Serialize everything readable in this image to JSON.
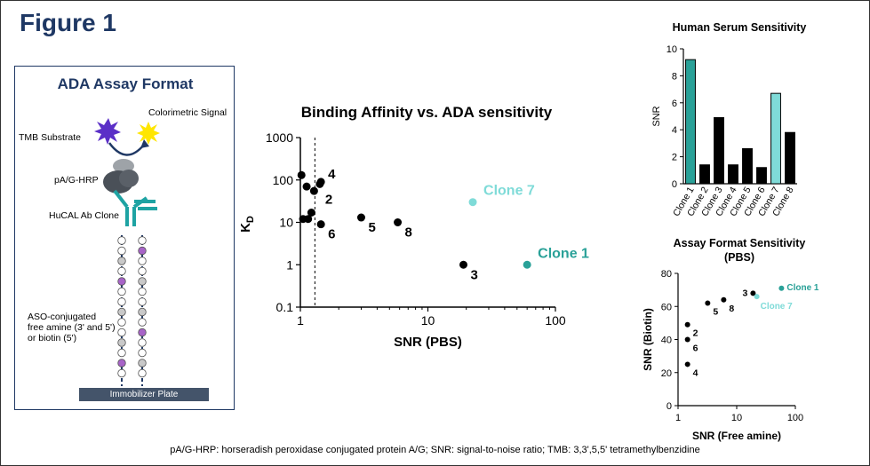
{
  "figure_title": "Figure 1",
  "assay": {
    "title": "ADA Assay Format",
    "colorimetric_signal": "Colorimetric Signal",
    "tmb_substrate": "TMB Substrate",
    "hrp": "pA/G-HRP",
    "clone": "HuCAL Ab Clone",
    "aso_line1": "ASO-conjugated",
    "aso_line2": "free amine (3' and 5')",
    "aso_line3": "or biotin (5')",
    "plate": "Immobilizer Plate"
  },
  "caption": "pA/G-HRP:  horseradish peroxidase  conjugated  protein A/G; SNR:  signal-to-noise  ratio; TMB:  3,3',5,5' tetramethylbenzidine",
  "colors": {
    "teal": "#2aa198",
    "light_teal": "#7fdbd8",
    "black": "#000000",
    "navy": "#1f3864"
  },
  "chart_data": [
    {
      "type": "scatter",
      "title": "Binding Affinity vs. ADA sensitivity",
      "xlabel": "SNR (PBS)",
      "ylabel": "K",
      "ylabel_sub": "D",
      "xscale": "log",
      "yscale": "log",
      "xlim": [
        1,
        100
      ],
      "ylim": [
        0.1,
        1000
      ],
      "xticks": [
        "1",
        "10",
        "100"
      ],
      "yticks": [
        "0.1",
        "1",
        "10",
        "100",
        "1000"
      ],
      "reference_line_x": 1.3,
      "points": [
        {
          "x": 1.02,
          "y": 130,
          "label": ""
        },
        {
          "x": 1.12,
          "y": 70,
          "label": ""
        },
        {
          "x": 1.28,
          "y": 55,
          "label": ""
        },
        {
          "x": 1.45,
          "y": 90,
          "label": "4"
        },
        {
          "x": 1.42,
          "y": 80,
          "label": "2"
        },
        {
          "x": 1.05,
          "y": 12,
          "label": ""
        },
        {
          "x": 1.15,
          "y": 12,
          "label": ""
        },
        {
          "x": 1.22,
          "y": 17,
          "label": ""
        },
        {
          "x": 1.45,
          "y": 9,
          "label": "6"
        },
        {
          "x": 3.0,
          "y": 13,
          "label": "5"
        },
        {
          "x": 5.8,
          "y": 10,
          "label": "8"
        },
        {
          "x": 19,
          "y": 1.0,
          "label": "3"
        },
        {
          "x": 22.5,
          "y": 30,
          "label": "Clone 7",
          "color": "light_teal"
        },
        {
          "x": 60,
          "y": 1.0,
          "label": "Clone 1",
          "color": "teal"
        }
      ]
    },
    {
      "type": "bar",
      "title": "Human Serum Sensitivity",
      "ylabel": "SNR",
      "ylim": [
        0,
        10
      ],
      "yticks": [
        "0",
        "2",
        "4",
        "6",
        "8",
        "10"
      ],
      "categories": [
        "Clone 1",
        "Clone 2",
        "Clone 3",
        "Clone 4",
        "Clone 5",
        "Clone 6",
        "Clone 7",
        "Clone 8"
      ],
      "values": [
        9.2,
        1.4,
        4.9,
        1.4,
        2.6,
        1.2,
        6.7,
        3.8
      ],
      "bar_colors": [
        "teal",
        "black",
        "black",
        "black",
        "black",
        "black",
        "light_teal",
        "black"
      ]
    },
    {
      "type": "scatter",
      "title_line1": "Assay Format Sensitivity",
      "title_line2": "(PBS)",
      "xlabel": "SNR (Free amine)",
      "ylabel": "SNR (Biotin)",
      "xscale": "log",
      "xlim": [
        1,
        100
      ],
      "ylim": [
        0,
        80
      ],
      "xticks": [
        "1",
        "10",
        "100"
      ],
      "yticks": [
        "0",
        "20",
        "40",
        "60",
        "80"
      ],
      "points": [
        {
          "x": 1.45,
          "y": 49,
          "label": "2"
        },
        {
          "x": 1.45,
          "y": 40,
          "label": "6"
        },
        {
          "x": 1.45,
          "y": 25,
          "label": "4"
        },
        {
          "x": 3.2,
          "y": 62,
          "label": "5"
        },
        {
          "x": 6.0,
          "y": 64,
          "label": "8"
        },
        {
          "x": 19,
          "y": 68,
          "label": "3"
        },
        {
          "x": 22,
          "y": 66,
          "label": "Clone 7",
          "color": "light_teal"
        },
        {
          "x": 58,
          "y": 71,
          "label": "Clone 1",
          "color": "teal"
        }
      ]
    }
  ]
}
